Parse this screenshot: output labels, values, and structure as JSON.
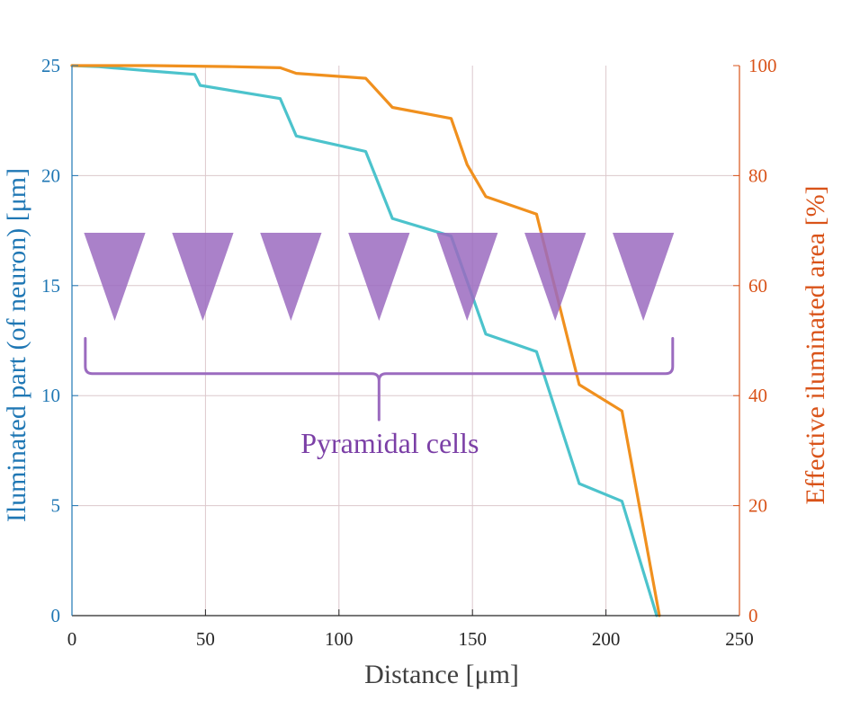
{
  "chart_data": {
    "type": "line",
    "title": "",
    "xlabel": "Distance [μm]",
    "ylabel_left": "Iluminated part (of neuron) [μm]",
    "ylabel_right": "Effective iluminated area [%]",
    "xlim": [
      0,
      250
    ],
    "ylim_left": [
      0,
      25
    ],
    "ylim_right": [
      0,
      100
    ],
    "x_ticks": [
      "0",
      "50",
      "100",
      "150",
      "200",
      "250"
    ],
    "y_left_ticks": [
      "0",
      "5",
      "10",
      "15",
      "20",
      "25"
    ],
    "y_right_ticks": [
      "0",
      "20",
      "40",
      "60",
      "80",
      "100"
    ],
    "grid": true,
    "colors": {
      "left_axis": "#1f77b4",
      "right_axis": "#d95319",
      "series_cyan": "#4cc3cc",
      "series_orange": "#f0901e",
      "pyramid": "#9b6bbf",
      "grid": "#dcc8cc"
    },
    "series": [
      {
        "name": "Iluminated part",
        "axis": "left",
        "x": [
          0,
          10,
          20,
          30,
          46,
          48,
          78,
          84,
          110,
          120,
          142,
          155,
          174,
          190,
          206,
          219
        ],
        "y": [
          25,
          24.95,
          24.85,
          24.75,
          24.6,
          24.1,
          23.5,
          21.8,
          21.1,
          18.05,
          17.25,
          12.8,
          12.0,
          6.0,
          5.2,
          0
        ]
      },
      {
        "name": "Effective iluminated area",
        "axis": "right",
        "x": [
          0,
          15,
          30,
          46,
          60,
          78,
          84,
          110,
          120,
          142,
          148,
          155,
          174,
          190,
          206,
          220
        ],
        "y": [
          100,
          100,
          100,
          99.9,
          99.8,
          99.6,
          98.6,
          97.7,
          92.4,
          90.4,
          82,
          76.2,
          73,
          42,
          37.2,
          0
        ]
      }
    ],
    "annotations": {
      "pyramidal_label": "Pyramidal cells",
      "pyramid_centers_x": [
        16,
        49,
        82,
        115,
        148,
        181,
        214
      ],
      "pyramid_top_y": 17.4,
      "pyramid_tip_y": 13.4,
      "pyramid_half_width": 11.5,
      "brace_x_range": [
        5,
        225
      ],
      "brace_center_x": 115,
      "brace_y": 11.0,
      "brace_ends_top_y": 12.6,
      "brace_tip_y": 8.9
    }
  }
}
